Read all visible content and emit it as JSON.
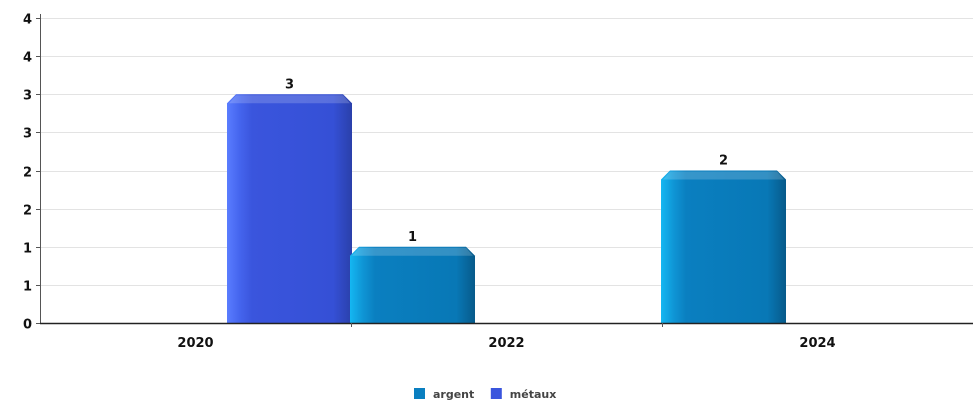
{
  "chart_data": {
    "type": "bar",
    "categories": [
      "2020",
      "2022",
      "2024"
    ],
    "series": [
      {
        "name": "argent",
        "color": "#0a7fc0",
        "values": [
          null,
          1,
          2
        ]
      },
      {
        "name": "métaux",
        "color": "#3a55dd",
        "values": [
          3,
          null,
          null
        ]
      }
    ],
    "bar_data_labels": [
      "3",
      "1",
      "2"
    ],
    "y_ticks": [
      0,
      0.5,
      1,
      1.5,
      2,
      2.5,
      3,
      3.5,
      4
    ],
    "y_tick_labels": [
      "0",
      "1",
      "1",
      "2",
      "2",
      "3",
      "3",
      "4",
      "4"
    ],
    "ylim": [
      0,
      4
    ],
    "grid": true,
    "legend_position": "bottom-center"
  }
}
